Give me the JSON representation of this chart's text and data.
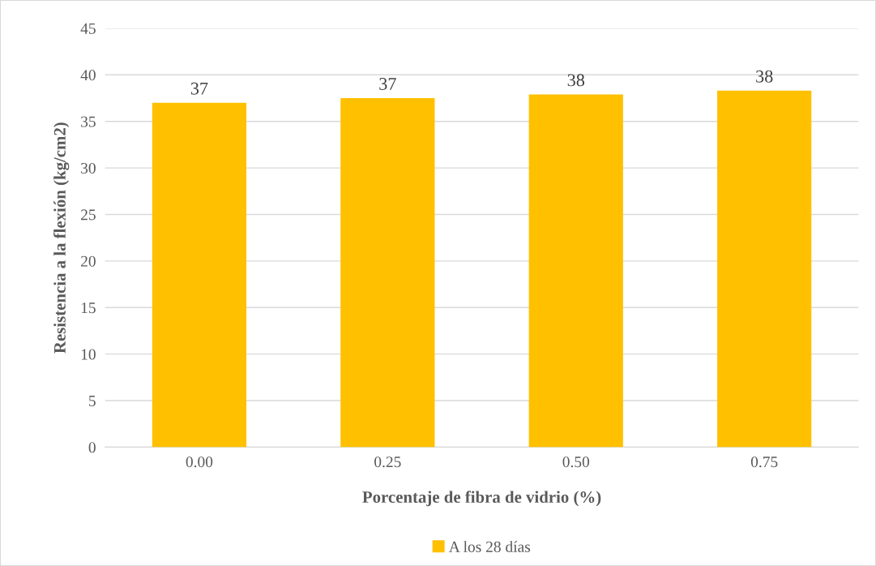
{
  "chart_data": {
    "type": "bar",
    "xlabel": "Porcentaje de fibra de vidrio (%)",
    "ylabel": "Resistencia a la flexión (kg/cm2)",
    "categories": [
      "0.00",
      "0.25",
      "0.50",
      "0.75"
    ],
    "series": [
      {
        "name": "A los 28 días",
        "color": "#ffc000",
        "values": [
          37.0,
          37.5,
          37.9,
          38.3
        ],
        "value_labels": [
          "37",
          "37",
          "38",
          "38"
        ]
      }
    ],
    "ylim": [
      0,
      45
    ],
    "yticks": [
      0,
      5,
      10,
      15,
      20,
      25,
      30,
      35,
      40,
      45
    ],
    "grid": "y",
    "legend": "bottom"
  }
}
